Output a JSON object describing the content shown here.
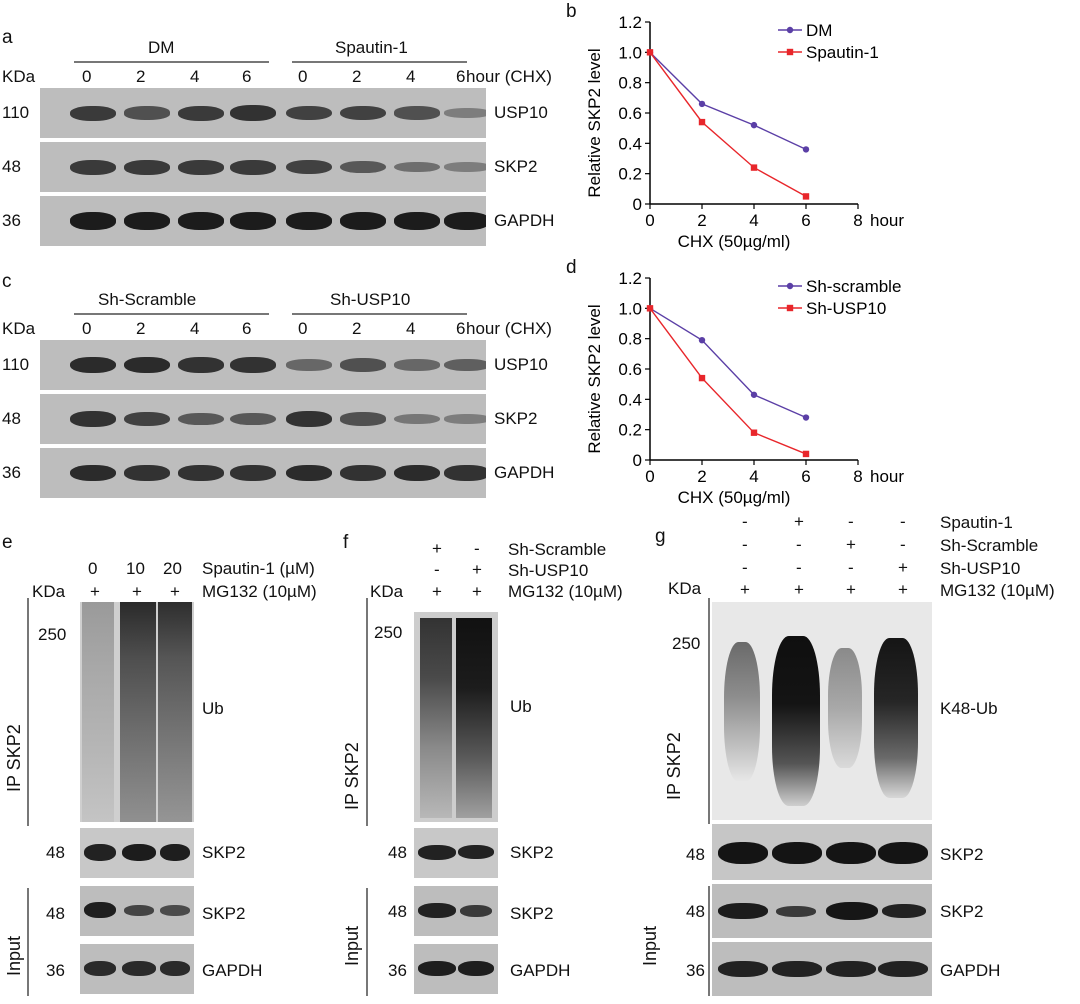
{
  "panels": {
    "a": {
      "letter": "a",
      "group1": "DM",
      "group2": "Spautin-1",
      "kda": "KDa",
      "lanes": [
        "0",
        "2",
        "4",
        "6",
        "0",
        "2",
        "4",
        "6"
      ],
      "time_unit": "hour (CHX)",
      "rows": [
        {
          "mw": "110",
          "protein": "USP10",
          "intensity": [
            0.75,
            0.6,
            0.75,
            0.8,
            0.7,
            0.7,
            0.6,
            0.3
          ]
        },
        {
          "mw": "48",
          "protein": "SKP2",
          "intensity": [
            0.75,
            0.75,
            0.75,
            0.75,
            0.7,
            0.55,
            0.4,
            0.3
          ]
        },
        {
          "mw": "36",
          "protein": "GAPDH",
          "intensity": [
            0.95,
            0.95,
            0.95,
            0.95,
            0.95,
            0.95,
            0.95,
            0.95
          ]
        }
      ]
    },
    "c": {
      "letter": "c",
      "group1": "Sh-Scramble",
      "group2": "Sh-USP10",
      "kda": "KDa",
      "lanes": [
        "0",
        "2",
        "4",
        "6",
        "0",
        "2",
        "4",
        "6"
      ],
      "time_unit": "hour (CHX)",
      "rows": [
        {
          "mw": "110",
          "protein": "USP10",
          "intensity": [
            0.85,
            0.85,
            0.8,
            0.8,
            0.45,
            0.6,
            0.45,
            0.5
          ]
        },
        {
          "mw": "48",
          "protein": "SKP2",
          "intensity": [
            0.8,
            0.7,
            0.55,
            0.55,
            0.8,
            0.6,
            0.35,
            0.3
          ]
        },
        {
          "mw": "36",
          "protein": "GAPDH",
          "intensity": [
            0.85,
            0.8,
            0.8,
            0.8,
            0.85,
            0.8,
            0.85,
            0.8
          ]
        }
      ]
    },
    "e": {
      "letter": "e",
      "treat_label": "Spautin-1 (µM)",
      "treat_values": [
        "0",
        "10",
        "20"
      ],
      "mg_label": "MG132 (10µM)",
      "mg_values": [
        "+",
        "+",
        "+"
      ],
      "kda": "KDa",
      "mw_top": "250",
      "ub": "Ub",
      "ip": "IP SKP2",
      "input": "Input",
      "ip_mw": "48",
      "ip_protein": "SKP2",
      "in_rows": [
        {
          "mw": "48",
          "protein": "SKP2"
        },
        {
          "mw": "36",
          "protein": "GAPDH"
        }
      ]
    },
    "f": {
      "letter": "f",
      "row1_label": "Sh-Scramble",
      "row1": [
        "+",
        "-"
      ],
      "row2_label": "Sh-USP10",
      "row2": [
        "-",
        "+"
      ],
      "mg_label": "MG132 (10µM)",
      "mg_values": [
        "+",
        "+"
      ],
      "kda": "KDa",
      "mw_top": "250",
      "ub": "Ub",
      "ip": "IP SKP2",
      "input": "Input",
      "ip_mw": "48",
      "ip_protein": "SKP2",
      "in_rows": [
        {
          "mw": "48",
          "protein": "SKP2"
        },
        {
          "mw": "36",
          "protein": "GAPDH"
        }
      ]
    },
    "g": {
      "letter": "g",
      "row1_label": "Spautin-1",
      "row1": [
        "-",
        "+",
        "-",
        "-"
      ],
      "row2_label": "Sh-Scramble",
      "row2": [
        "-",
        "-",
        "+",
        "-"
      ],
      "row3_label": "Sh-USP10",
      "row3": [
        "-",
        "-",
        "-",
        "+"
      ],
      "mg_label": "MG132 (10µM)",
      "mg_values": [
        "+",
        "+",
        "+",
        "+"
      ],
      "kda": "KDa",
      "mw_top": "250",
      "ub": "K48-Ub",
      "ip": "IP SKP2",
      "input": "Input",
      "ip_mw": "48",
      "ip_protein": "SKP2",
      "in_rows": [
        {
          "mw": "48",
          "protein": "SKP2"
        },
        {
          "mw": "36",
          "protein": "GAPDH"
        }
      ]
    }
  },
  "chart_data": [
    {
      "panel": "b",
      "type": "line",
      "x": [
        0,
        2,
        4,
        6
      ],
      "series": [
        {
          "name": "DM",
          "values": [
            1.0,
            0.66,
            0.52,
            0.36
          ],
          "color": "#5b3fa6"
        },
        {
          "name": "Spautin-1",
          "values": [
            1.0,
            0.54,
            0.24,
            0.05
          ],
          "color": "#e8262b"
        }
      ],
      "xlabel": "CHX (50µg/ml)",
      "x_unit": "hour",
      "ylabel": "Relative SKP2 level",
      "xlim": [
        0,
        8
      ],
      "ylim": [
        0,
        1.2
      ],
      "xticks": [
        "0",
        "2",
        "4",
        "6",
        "8"
      ],
      "yticks": [
        "0",
        "0.2",
        "0.4",
        "0.6",
        "0.8",
        "1.0",
        "1.2"
      ],
      "legend": "top-right",
      "grid": false
    },
    {
      "panel": "d",
      "type": "line",
      "x": [
        0,
        2,
        4,
        6
      ],
      "series": [
        {
          "name": "Sh-scramble",
          "values": [
            1.0,
            0.79,
            0.43,
            0.28
          ],
          "color": "#5b3fa6"
        },
        {
          "name": "Sh-USP10",
          "values": [
            1.0,
            0.54,
            0.18,
            0.04
          ],
          "color": "#e8262b"
        }
      ],
      "xlabel": "CHX (50µg/ml)",
      "x_unit": "hour",
      "ylabel": "Relative SKP2 level",
      "xlim": [
        0,
        8
      ],
      "ylim": [
        0,
        1.2
      ],
      "xticks": [
        "0",
        "2",
        "4",
        "6",
        "8"
      ],
      "yticks": [
        "0",
        "0.2",
        "0.4",
        "0.6",
        "0.8",
        "1.0",
        "1.2"
      ],
      "legend": "top-right",
      "grid": false
    }
  ]
}
